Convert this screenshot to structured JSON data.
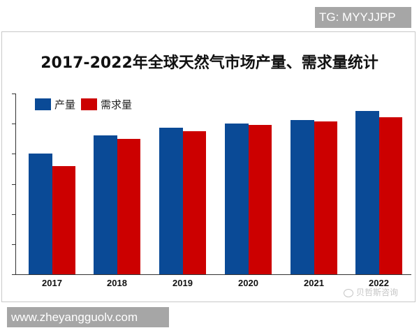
{
  "watermarks": {
    "tg": "TG: MYYJJPP",
    "url": "www.zheyangguolv.com",
    "weibo": "贝哲斯咨询"
  },
  "colors": {
    "production": "#0a4a96",
    "demand": "#cc0000"
  },
  "chart_data": {
    "type": "bar",
    "title": "2017-2022年全球天然气市场产量、需求量统计",
    "xlabel": "",
    "ylabel": "",
    "categories": [
      "2017",
      "2018",
      "2019",
      "2020",
      "2021",
      "2022"
    ],
    "series": [
      {
        "name": "产量",
        "values": [
          4.0,
          4.6,
          4.86,
          5.0,
          5.12,
          5.41
        ]
      },
      {
        "name": "需求量",
        "values": [
          3.6,
          4.49,
          4.75,
          4.96,
          5.07,
          5.21
        ]
      }
    ],
    "ylim": [
      0,
      6
    ],
    "y_ticks_count": 7,
    "y_tick_labels_visible": false,
    "value_units": "relative (y-axis tick intervals; axis unlabeled)",
    "grid": false,
    "legend_position": "top-left inside plot"
  }
}
